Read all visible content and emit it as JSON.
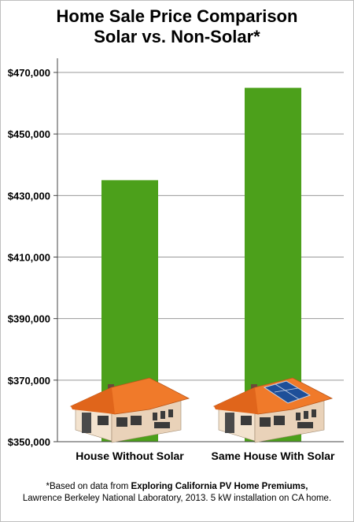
{
  "title": {
    "line1": "Home Sale Price Comparison",
    "line2": "Solar vs. Non-Solar*"
  },
  "footnote": {
    "prefix": "*Based on data from ",
    "source": "Exploring California PV Home Premiums,",
    "line2": "Lawrence Berkeley National Laboratory, 2013. 5 kW installation on CA home."
  },
  "colors": {
    "bar": "#4ca01b",
    "roof": "#f07a2a",
    "wall": "#e9d2b9",
    "solar_panel": "#1e4f99",
    "door": "#4a4a4a"
  },
  "icons": [
    "house-icon",
    "solar-house-icon"
  ],
  "chart_data": {
    "type": "bar",
    "categories": [
      "House Without Solar",
      "Same House With Solar"
    ],
    "values": [
      435000,
      465000
    ],
    "ylim": [
      350000,
      470000
    ],
    "yticks": [
      350000,
      370000,
      390000,
      410000,
      430000,
      450000,
      470000
    ],
    "ytick_labels": [
      "$350,000",
      "$370,000",
      "$390,000",
      "$410,000",
      "$430,000",
      "$450,000",
      "$470,000"
    ],
    "grid": true,
    "legend": "none"
  }
}
